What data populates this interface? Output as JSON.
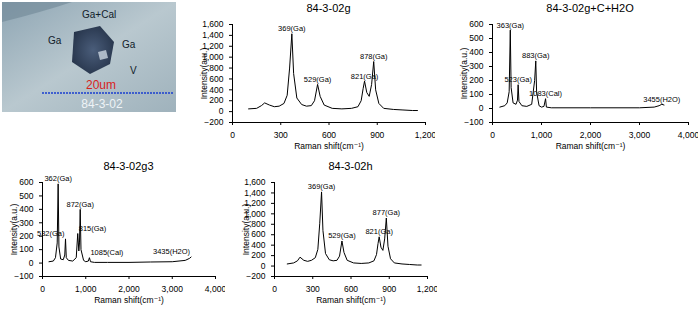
{
  "micrograph": {
    "labels": [
      "Ga+Cal",
      "Ga",
      "Ga",
      "V"
    ],
    "scale_bar": "20um",
    "sample": "84-3-02"
  },
  "chart_data": [
    {
      "type": "line",
      "title": "84-3-02g",
      "x_label": "Raman shift(cm⁻¹)",
      "y_label": "Intensity(a.u.)",
      "xlim": [
        0,
        1200
      ],
      "xticks": [
        0,
        300,
        600,
        900,
        1200
      ],
      "ylim": [
        -200,
        1600
      ],
      "yticks": [
        -200,
        0,
        200,
        400,
        600,
        800,
        1000,
        1200,
        1400,
        1600
      ],
      "color": "#000000",
      "x": [
        100,
        150,
        180,
        200,
        230,
        260,
        290,
        320,
        340,
        355,
        369,
        380,
        400,
        430,
        460,
        490,
        510,
        529,
        545,
        570,
        620,
        680,
        740,
        780,
        800,
        812,
        821,
        835,
        850,
        865,
        878,
        890,
        910,
        940,
        1000,
        1060,
        1120,
        1150
      ],
      "values": [
        50,
        60,
        110,
        160,
        120,
        90,
        100,
        150,
        300,
        800,
        1430,
        700,
        250,
        130,
        100,
        110,
        200,
        500,
        280,
        120,
        60,
        50,
        60,
        90,
        200,
        420,
        560,
        350,
        280,
        500,
        920,
        400,
        150,
        60,
        40,
        30,
        20,
        20
      ],
      "annotations": [
        {
          "text": "369(Ga)",
          "x": 369,
          "y": 1430
        },
        {
          "text": "529(Ga)",
          "x": 529,
          "y": 500
        },
        {
          "text": "821(Ga)",
          "x": 821,
          "y": 560
        },
        {
          "text": "878(Ga)",
          "x": 878,
          "y": 920
        }
      ]
    },
    {
      "type": "line",
      "title": "84-3-02g+C+H2O",
      "x_label": "Raman shift(cm⁻¹)",
      "y_label": "Intensity(a.u.)",
      "xlim": [
        0,
        4000
      ],
      "xticks": [
        0,
        1000,
        2000,
        3000,
        4000
      ],
      "ylim": [
        -100,
        600
      ],
      "yticks": [
        -100,
        0,
        100,
        200,
        300,
        400,
        500,
        600
      ],
      "color": "#000000",
      "x": [
        150,
        250,
        300,
        340,
        363,
        380,
        420,
        480,
        510,
        523,
        540,
        600,
        700,
        800,
        860,
        883,
        900,
        950,
        1000,
        1050,
        1083,
        1100,
        1200,
        1500,
        2000,
        2500,
        3000,
        3300,
        3400,
        3455,
        3500
      ],
      "values": [
        10,
        20,
        40,
        120,
        560,
        150,
        40,
        30,
        60,
        170,
        50,
        20,
        15,
        30,
        200,
        340,
        120,
        20,
        10,
        15,
        70,
        10,
        5,
        5,
        5,
        5,
        5,
        10,
        20,
        30,
        25
      ],
      "annotations": [
        {
          "text": "363(Ga)",
          "x": 363,
          "y": 560
        },
        {
          "text": "523(Ga)",
          "x": 523,
          "y": 170
        },
        {
          "text": "883(Ga)",
          "x": 883,
          "y": 340
        },
        {
          "text": "1083(Cal)",
          "x": 1083,
          "y": 70
        },
        {
          "text": "3455(H2O)",
          "x": 3455,
          "y": 30
        }
      ]
    },
    {
      "type": "line",
      "title": "84-3-02g3",
      "x_label": "Raman shift(cm⁻¹)",
      "y_label": "Intensity(a.u.)",
      "xlim": [
        0,
        4000
      ],
      "xticks": [
        0,
        1000,
        2000,
        3000,
        4000
      ],
      "ylim": [
        -100,
        600
      ],
      "yticks": [
        -100,
        0,
        100,
        200,
        300,
        400,
        500,
        600
      ],
      "color": "#000000",
      "x": [
        150,
        250,
        300,
        340,
        362,
        380,
        420,
        480,
        515,
        532,
        550,
        600,
        700,
        780,
        815,
        840,
        855,
        872,
        890,
        950,
        1000,
        1060,
        1085,
        1110,
        1200,
        1500,
        2000,
        2500,
        3000,
        3300,
        3400,
        3435
      ],
      "values": [
        10,
        15,
        40,
        150,
        590,
        120,
        30,
        25,
        60,
        180,
        40,
        20,
        15,
        40,
        220,
        90,
        150,
        400,
        100,
        20,
        10,
        15,
        40,
        10,
        5,
        5,
        5,
        8,
        10,
        20,
        35,
        45
      ],
      "annotations": [
        {
          "text": "362(Ga)",
          "x": 362,
          "y": 590
        },
        {
          "text": "532(Ga)",
          "x": 532,
          "y": 180
        },
        {
          "text": "815(Ga)",
          "x": 815,
          "y": 220
        },
        {
          "text": "872(Ga)",
          "x": 872,
          "y": 400
        },
        {
          "text": "1085(Cal)",
          "x": 1085,
          "y": 40
        },
        {
          "text": "3435(H2O)",
          "x": 3435,
          "y": 45
        }
      ]
    },
    {
      "type": "line",
      "title": "84-3-02h",
      "x_label": "Raman shift(cm⁻¹)",
      "y_label": "Intensity(a.u.)",
      "xlim": [
        0,
        1200
      ],
      "xticks": [
        0,
        300,
        600,
        900,
        1200
      ],
      "ylim": [
        -200,
        1600
      ],
      "yticks": [
        -200,
        0,
        200,
        400,
        600,
        800,
        1000,
        1200,
        1400,
        1600
      ],
      "color": "#000000",
      "x": [
        100,
        150,
        180,
        200,
        230,
        260,
        290,
        320,
        340,
        355,
        369,
        380,
        400,
        430,
        460,
        490,
        510,
        529,
        545,
        570,
        620,
        680,
        740,
        780,
        800,
        812,
        821,
        835,
        850,
        864,
        877,
        890,
        910,
        940,
        1000,
        1060,
        1120,
        1150
      ],
      "values": [
        40,
        60,
        100,
        170,
        110,
        90,
        110,
        160,
        320,
        820,
        1420,
        680,
        240,
        120,
        100,
        110,
        190,
        480,
        260,
        110,
        60,
        50,
        60,
        100,
        220,
        430,
        560,
        360,
        300,
        520,
        920,
        380,
        140,
        60,
        40,
        30,
        20,
        20
      ],
      "annotations": [
        {
          "text": "369(Ga)",
          "x": 369,
          "y": 1420
        },
        {
          "text": "529(Ga)",
          "x": 529,
          "y": 480
        },
        {
          "text": "821(Ga)",
          "x": 821,
          "y": 560
        },
        {
          "text": "877(Ga)",
          "x": 877,
          "y": 920
        }
      ]
    }
  ]
}
